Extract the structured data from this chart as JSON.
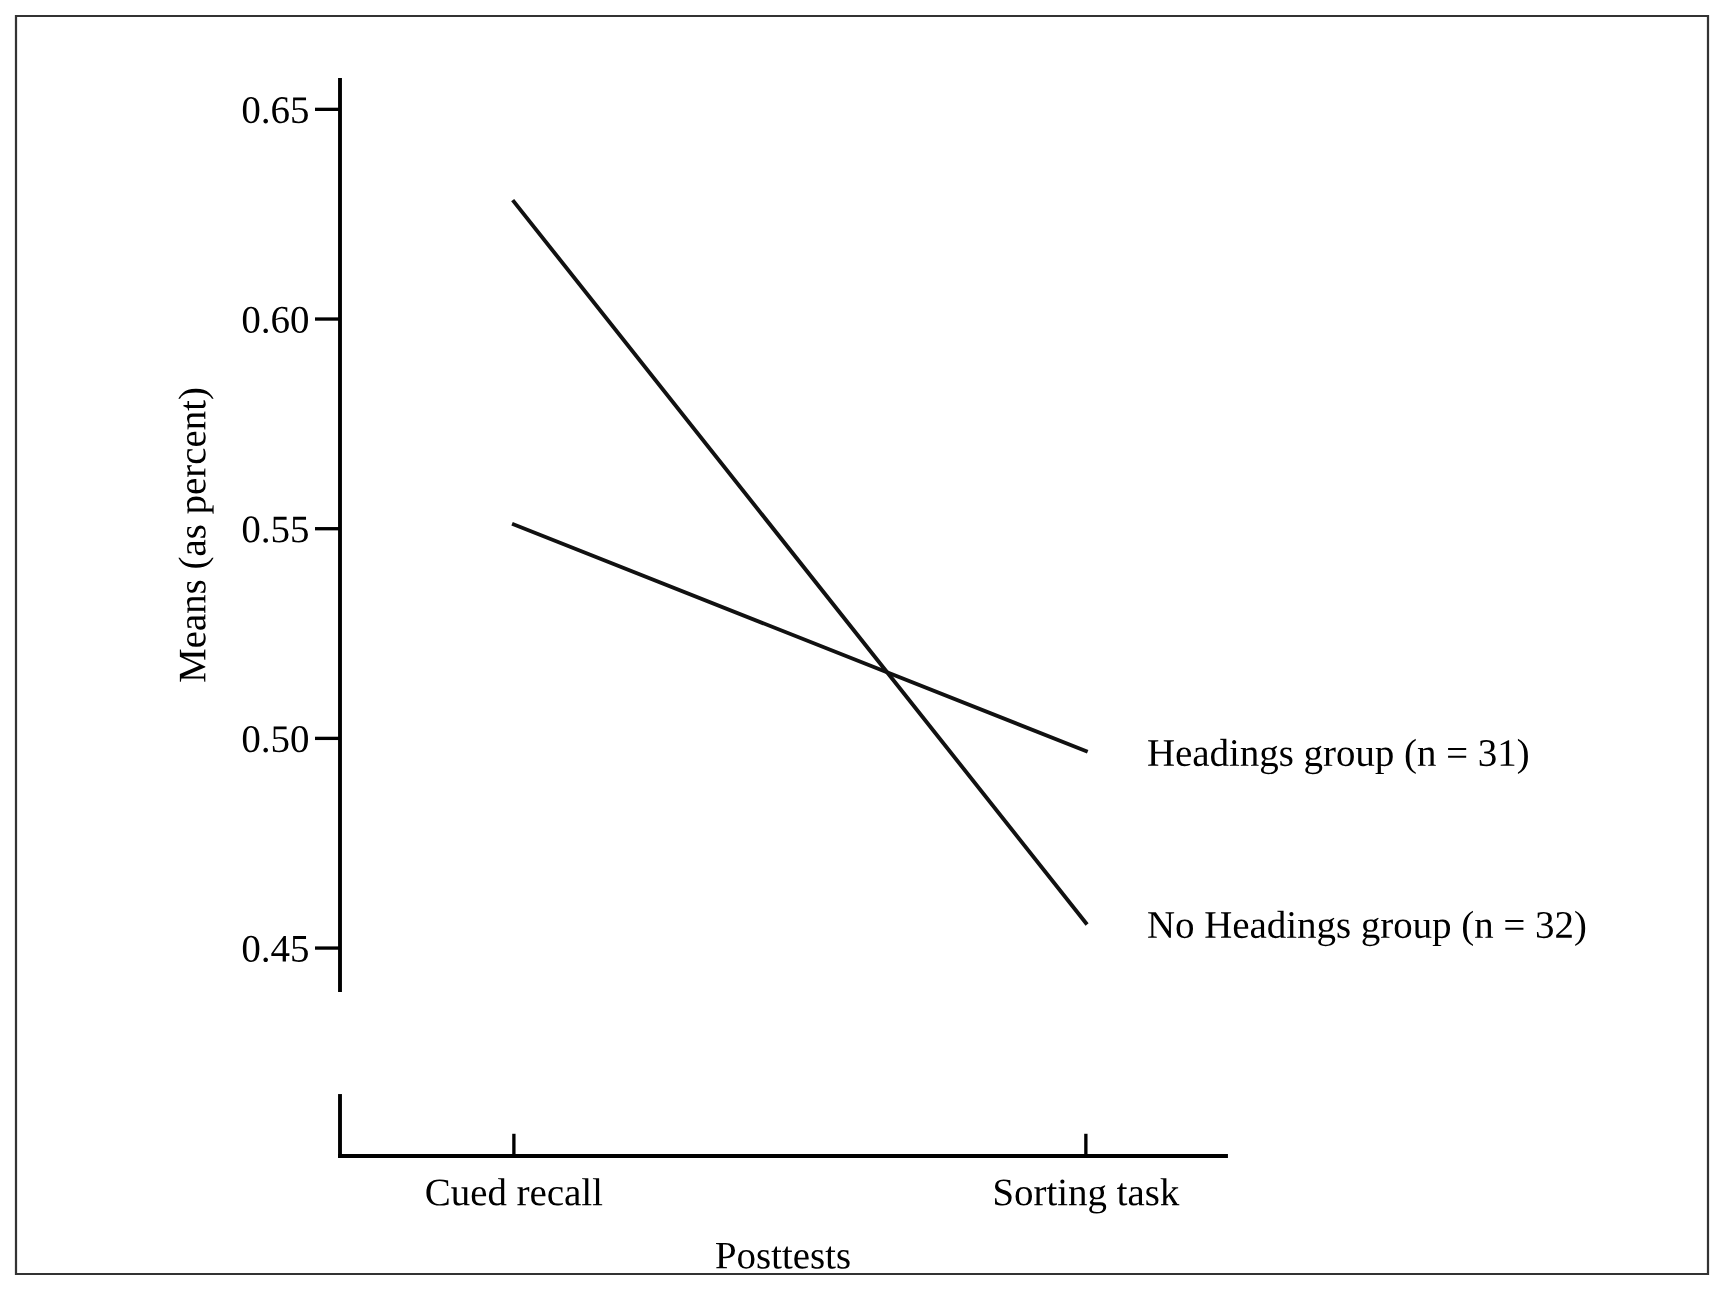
{
  "chart_data": {
    "type": "line",
    "xlabel": "Posttests",
    "ylabel": "Means (as percent)",
    "categories": [
      "Cued recall",
      "Sorting task"
    ],
    "series": [
      {
        "name": "Headings group (n = 31)",
        "color": "#111111",
        "values": [
          0.551,
          0.497
        ]
      },
      {
        "name": "No Headings group (n = 32)",
        "color": "#111111",
        "values": [
          0.628,
          0.456
        ]
      }
    ],
    "ylim": [
      0.44,
      0.657
    ],
    "yticks": [
      0.45,
      {
        "value": 0.5,
        "label": "0.50"
      },
      0.55,
      {
        "value": 0.6,
        "label": "0.60"
      },
      0.65
    ],
    "grid": false,
    "legend": false,
    "marker": "none",
    "line_style": "solid"
  }
}
